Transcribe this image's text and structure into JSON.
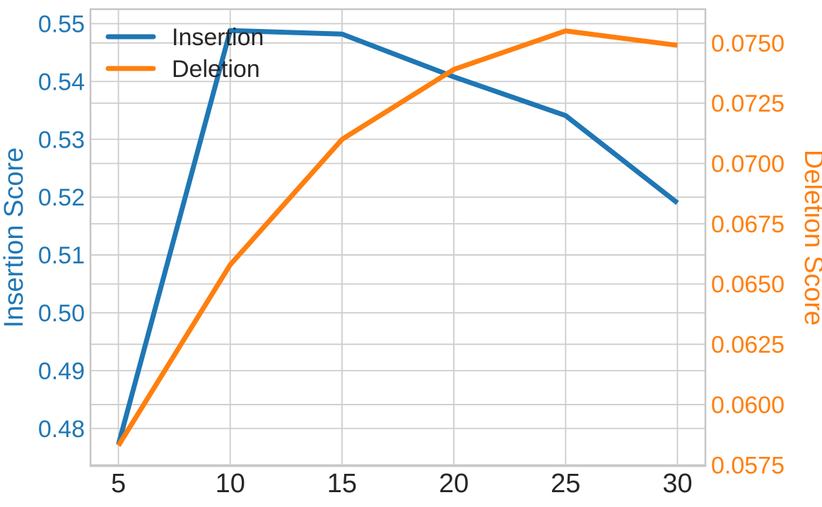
{
  "chart_data": {
    "type": "line",
    "title": "",
    "x": [
      5,
      10,
      15,
      20,
      25,
      30
    ],
    "series": [
      {
        "name": "Insertion",
        "axis": "left",
        "color": "#1f77b4",
        "values": [
          0.4772,
          0.5488,
          0.5482,
          0.5408,
          0.5341,
          0.519
        ]
      },
      {
        "name": "Deletion",
        "axis": "right",
        "color": "#ff7f0e",
        "values": [
          0.0583,
          0.0658,
          0.071,
          0.0739,
          0.0755,
          0.0749
        ]
      }
    ],
    "x_axis": {
      "label": "",
      "ticks": [
        5,
        10,
        15,
        20,
        25,
        30
      ],
      "tick_labels": [
        "5",
        "10",
        "15",
        "20",
        "25",
        "30"
      ],
      "lim": [
        3.75,
        31.25
      ],
      "tick_color": "#262626"
    },
    "left_axis": {
      "label": "Insertion Score",
      "color": "#1f77b4",
      "ticks": [
        0.48,
        0.49,
        0.5,
        0.51,
        0.52,
        0.53,
        0.54,
        0.55
      ],
      "tick_labels": [
        "0.48",
        "0.49",
        "0.50",
        "0.51",
        "0.52",
        "0.53",
        "0.54",
        "0.55"
      ],
      "lim": [
        0.4735,
        0.5525
      ]
    },
    "right_axis": {
      "label": "Deletion Score",
      "color": "#ff7f0e",
      "ticks": [
        0.0575,
        0.06,
        0.0625,
        0.065,
        0.0675,
        0.07,
        0.0725,
        0.075
      ],
      "tick_labels": [
        "0.0575",
        "0.0600",
        "0.0625",
        "0.0650",
        "0.0675",
        "0.0700",
        "0.0725",
        "0.0750"
      ],
      "lim": [
        0.05745,
        0.0764
      ]
    },
    "legend": {
      "position": "upper-left",
      "entries": [
        "Insertion",
        "Deletion"
      ],
      "text_color": "#262626",
      "frame": false
    },
    "grid": true,
    "style": {
      "background": "#ffffff",
      "grid_color": "#cdcdcd",
      "spine_color": "#c6c6c6"
    }
  }
}
